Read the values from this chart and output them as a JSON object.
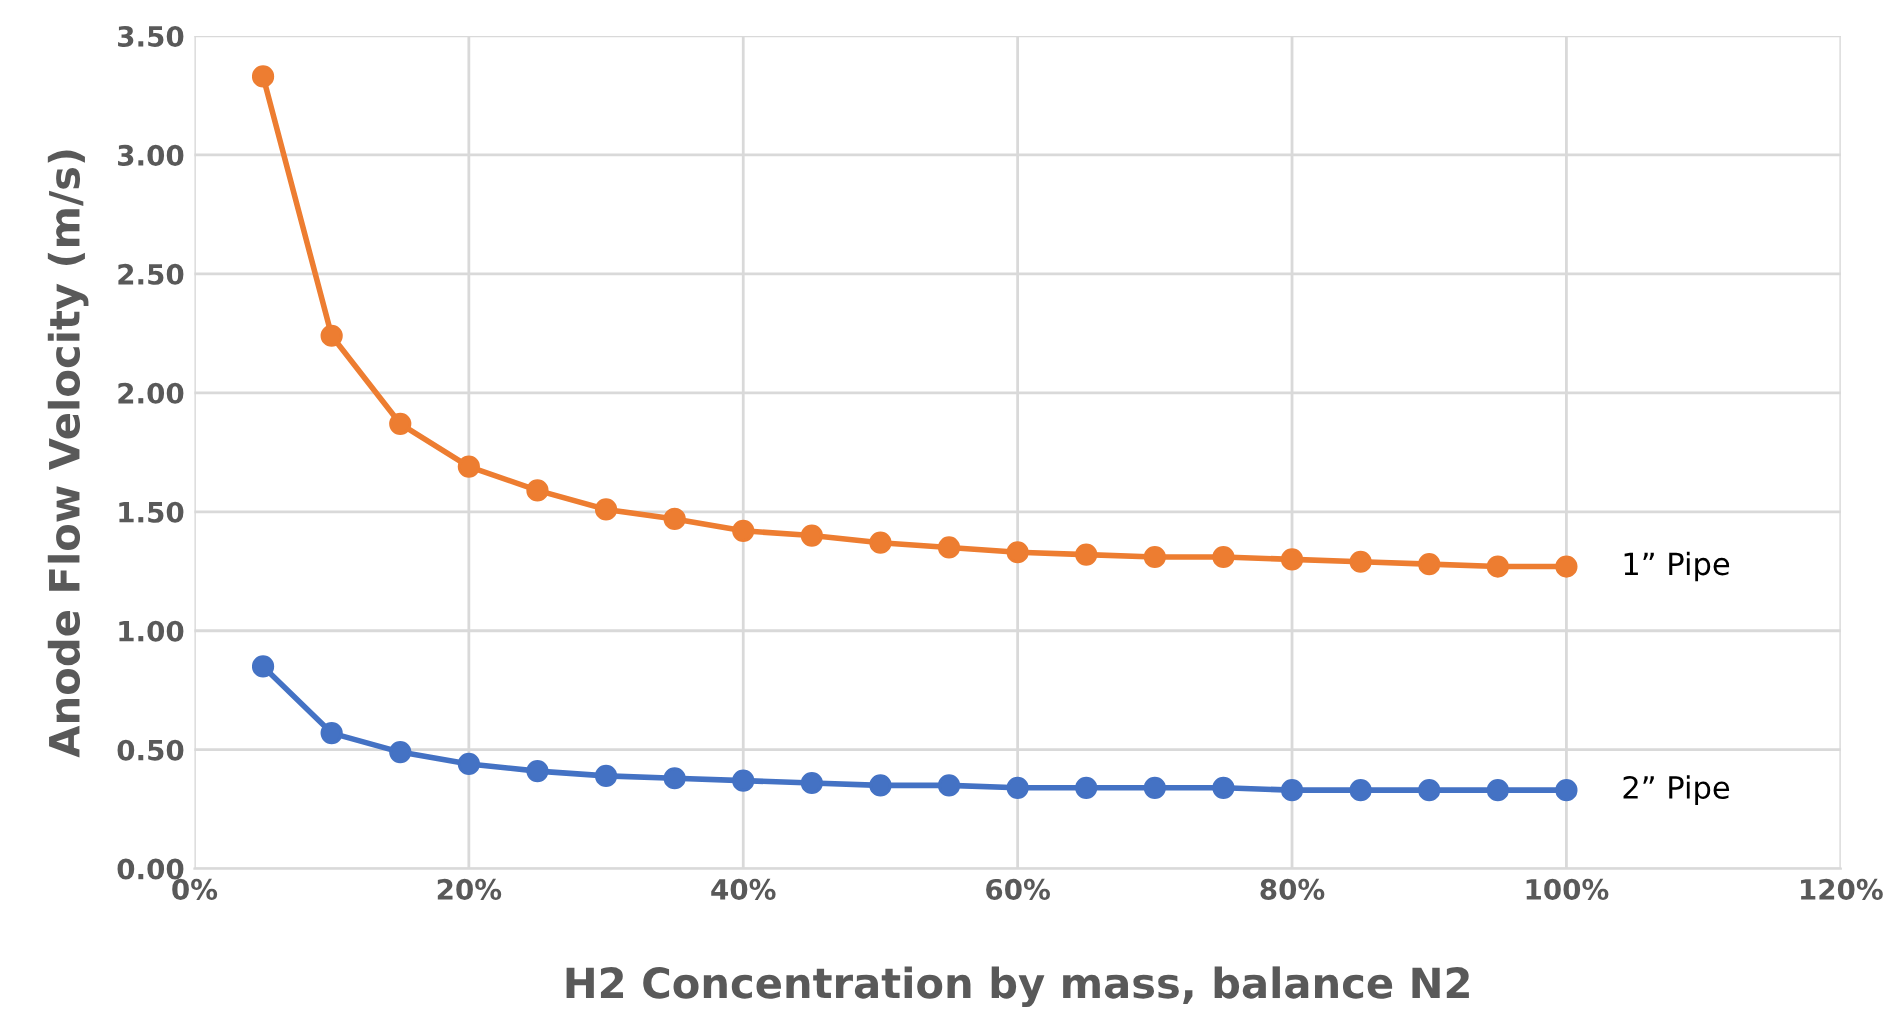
{
  "chart_data": {
    "type": "line",
    "xlabel": "H2 Concentration by mass, balance N2",
    "ylabel": "Anode Flow Velocity (m/s)",
    "x": [
      5,
      10,
      15,
      20,
      25,
      30,
      35,
      40,
      45,
      50,
      55,
      60,
      65,
      70,
      75,
      80,
      85,
      90,
      95,
      100
    ],
    "series": [
      {
        "name": "1” Pipe",
        "color": "#ed7d31",
        "values": [
          3.33,
          2.24,
          1.87,
          1.69,
          1.59,
          1.51,
          1.47,
          1.42,
          1.4,
          1.37,
          1.35,
          1.33,
          1.32,
          1.31,
          1.31,
          1.3,
          1.29,
          1.28,
          1.27,
          1.27
        ]
      },
      {
        "name": "2” Pipe",
        "color": "#4472c4",
        "values": [
          0.85,
          0.57,
          0.49,
          0.44,
          0.41,
          0.39,
          0.38,
          0.37,
          0.36,
          0.35,
          0.35,
          0.34,
          0.34,
          0.34,
          0.34,
          0.33,
          0.33,
          0.33,
          0.33,
          0.33
        ]
      }
    ],
    "xlim": [
      0,
      120
    ],
    "xticks": [
      {
        "value": 0,
        "label": "0%"
      },
      {
        "value": 20,
        "label": "20%"
      },
      {
        "value": 40,
        "label": "40%"
      },
      {
        "value": 60,
        "label": "60%"
      },
      {
        "value": 80,
        "label": "80%"
      },
      {
        "value": 100,
        "label": "100%"
      },
      {
        "value": 120,
        "label": "120%"
      }
    ],
    "ylim": [
      0,
      3.5
    ],
    "yticks": [
      {
        "value": 0,
        "label": "0.00"
      },
      {
        "value": 0.5,
        "label": "0.50"
      },
      {
        "value": 1,
        "label": "1.00"
      },
      {
        "value": 1.5,
        "label": "1.50"
      },
      {
        "value": 2,
        "label": "2.00"
      },
      {
        "value": 2.5,
        "label": "2.50"
      },
      {
        "value": 3,
        "label": "3.00"
      },
      {
        "value": 3.5,
        "label": "3.50"
      }
    ],
    "grid": true,
    "marker": "circle",
    "line_style": "solid"
  }
}
